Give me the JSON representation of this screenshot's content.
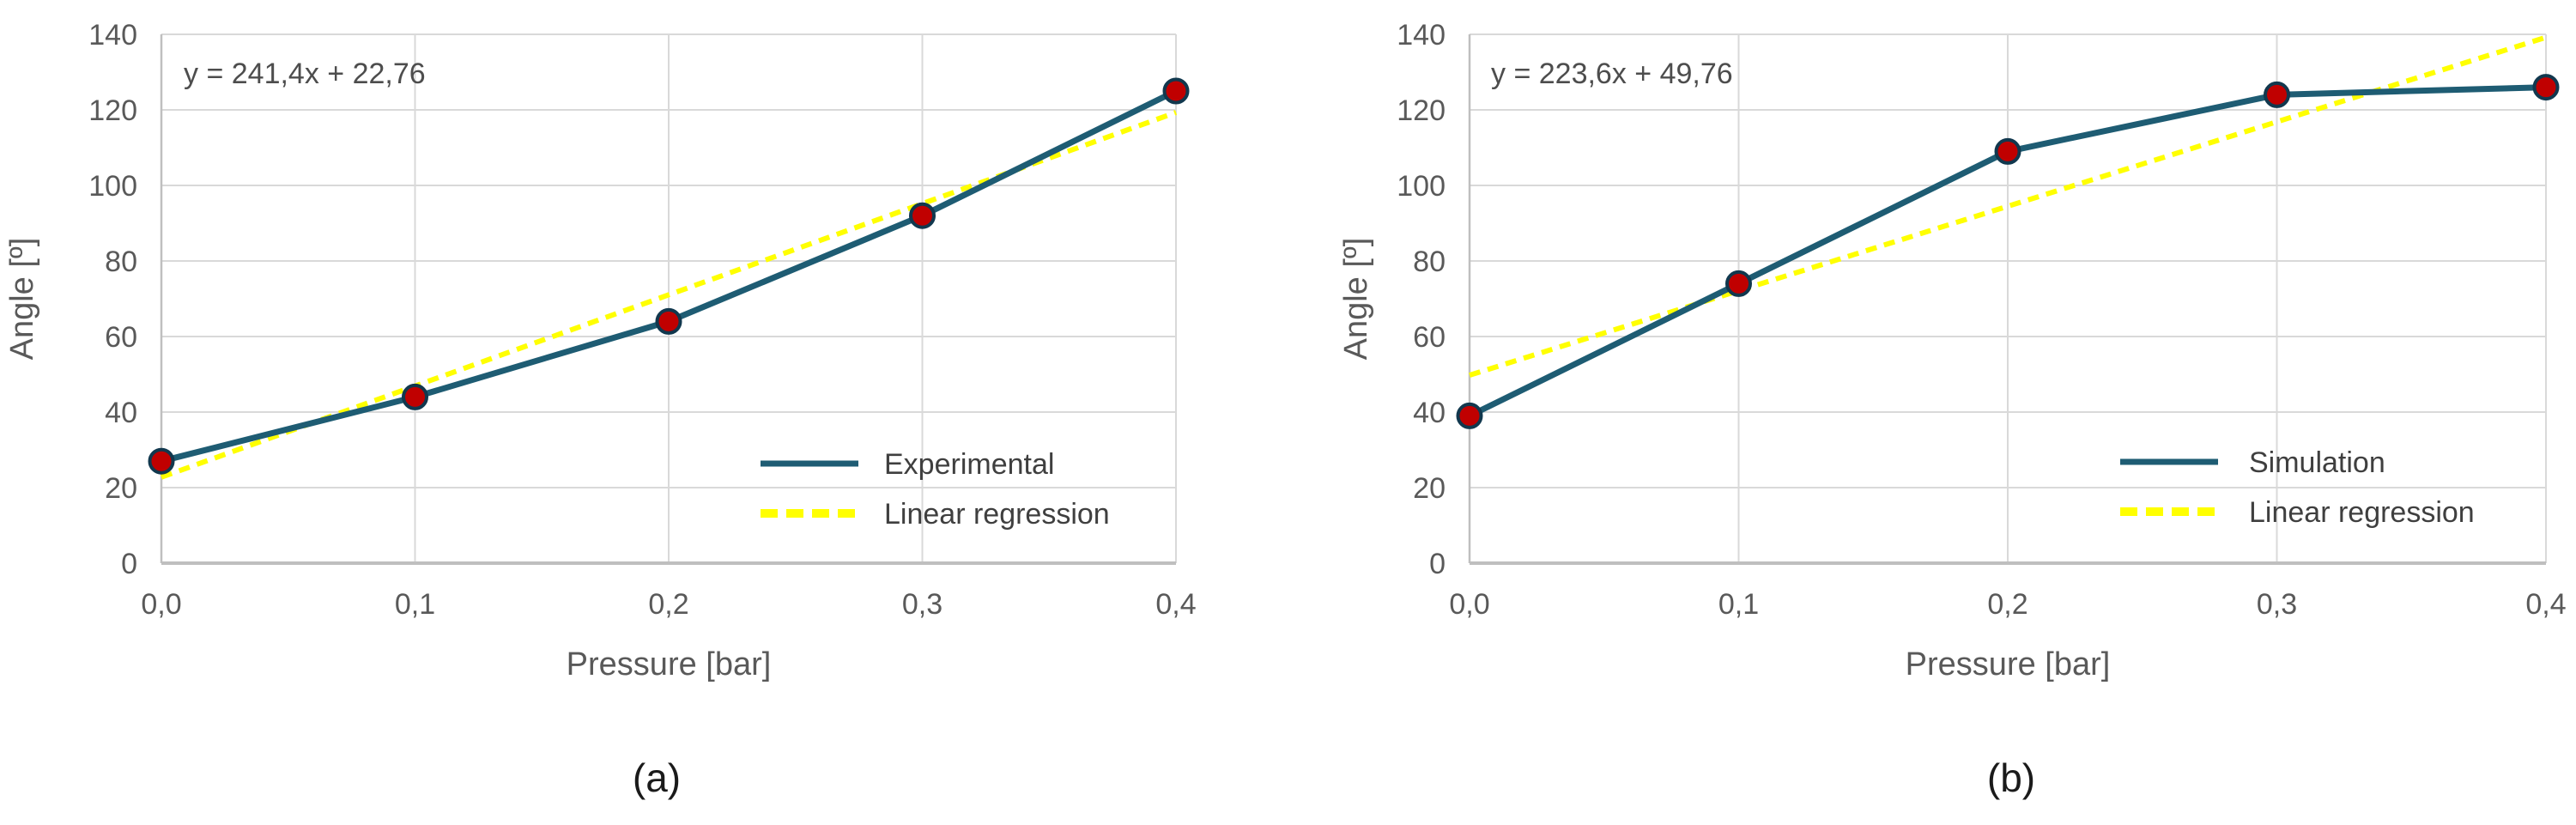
{
  "figure": {
    "background": "#FFFFFF",
    "description": "Two Excel-style line charts of bending angle versus pressure with dotted linear regression trendlines",
    "captions": [
      "(a)",
      "(b)"
    ]
  },
  "chart_data": [
    {
      "type": "line",
      "panel": "a",
      "caption": "(a)",
      "equation": "y = 241,4x + 22,76",
      "xlabel": "Pressure [bar]",
      "ylabel": "Angle [º]",
      "x": [
        0.0,
        0.1,
        0.2,
        0.3,
        0.4
      ],
      "x_tick_labels": [
        "0,0",
        "0,1",
        "0,2",
        "0,3",
        "0,4"
      ],
      "y_ticks": [
        0,
        20,
        40,
        60,
        80,
        100,
        120,
        140
      ],
      "xlim": [
        0,
        0.4
      ],
      "ylim": [
        0,
        140
      ],
      "grid": true,
      "legend_position": "inside lower-right",
      "series": [
        {
          "name": "Experimental",
          "values": [
            27,
            44,
            64,
            92,
            125
          ],
          "color": "#1E5C73",
          "marker": "circle",
          "marker_color": "#C00000"
        }
      ],
      "trendline": {
        "label": "Linear regression",
        "slope": 241.4,
        "intercept": 22.76,
        "color": "#FFFF00",
        "style": "dotted"
      }
    },
    {
      "type": "line",
      "panel": "b",
      "caption": "(b)",
      "equation": "y = 223,6x + 49,76",
      "xlabel": "Pressure [bar]",
      "ylabel": "Angle [º]",
      "x": [
        0.0,
        0.1,
        0.2,
        0.3,
        0.4
      ],
      "x_tick_labels": [
        "0,0",
        "0,1",
        "0,2",
        "0,3",
        "0,4"
      ],
      "y_ticks": [
        0,
        20,
        40,
        60,
        80,
        100,
        120,
        140
      ],
      "xlim": [
        0,
        0.4
      ],
      "ylim": [
        0,
        140
      ],
      "grid": true,
      "legend_position": "inside lower-right",
      "series": [
        {
          "name": "Simulation",
          "values": [
            39,
            74,
            109,
            124,
            126
          ],
          "color": "#1E5C73",
          "marker": "circle",
          "marker_color": "#C00000"
        }
      ],
      "trendline": {
        "label": "Linear regression",
        "slope": 223.6,
        "intercept": 49.76,
        "color": "#FFFF00",
        "style": "dotted"
      }
    }
  ],
  "style": {
    "series_color": "#1E5C73",
    "marker_fill": "#C00000",
    "marker_stroke": "#11384E",
    "trendline_color": "#FFFF00",
    "gridline_color": "#D9D9D9",
    "axis_color": "#BFBFBF",
    "tick_text_color": "#595959",
    "legend_text_color": "#3F3F3F",
    "caption_color": "#1A1A1A"
  }
}
